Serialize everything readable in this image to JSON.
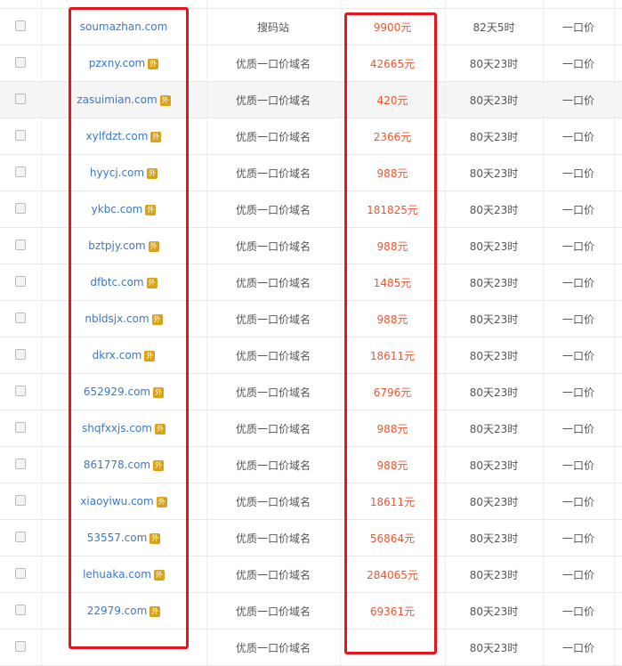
{
  "rows": [
    {
      "domain": "",
      "tag": "",
      "type": "",
      "price": "",
      "time": "",
      "mode": ""
    },
    {
      "domain": "soumazhan.com",
      "tag": "",
      "type": "搜码站",
      "price": "9900元",
      "time": "82天5时",
      "mode": "一口价"
    },
    {
      "domain": "pzxny.com",
      "tag": "外",
      "type": "优质一口价域名",
      "price": "42665元",
      "time": "80天23时",
      "mode": "一口价"
    },
    {
      "domain": "zasuimian.com",
      "tag": "外",
      "type": "优质一口价域名",
      "price": "420元",
      "time": "80天23时",
      "mode": "一口价"
    },
    {
      "domain": "xylfdzt.com",
      "tag": "外",
      "type": "优质一口价域名",
      "price": "2366元",
      "time": "80天23时",
      "mode": "一口价"
    },
    {
      "domain": "hyycj.com",
      "tag": "外",
      "type": "优质一口价域名",
      "price": "988元",
      "time": "80天23时",
      "mode": "一口价"
    },
    {
      "domain": "ykbc.com",
      "tag": "外",
      "type": "优质一口价域名",
      "price": "181825元",
      "time": "80天23时",
      "mode": "一口价"
    },
    {
      "domain": "bztpjy.com",
      "tag": "外",
      "type": "优质一口价域名",
      "price": "988元",
      "time": "80天23时",
      "mode": "一口价"
    },
    {
      "domain": "dfbtc.com",
      "tag": "外",
      "type": "优质一口价域名",
      "price": "1485元",
      "time": "80天23时",
      "mode": "一口价"
    },
    {
      "domain": "nbldsjx.com",
      "tag": "外",
      "type": "优质一口价域名",
      "price": "988元",
      "time": "80天23时",
      "mode": "一口价"
    },
    {
      "domain": "dkrx.com",
      "tag": "外",
      "type": "优质一口价域名",
      "price": "18611元",
      "time": "80天23时",
      "mode": "一口价"
    },
    {
      "domain": "652929.com",
      "tag": "外",
      "type": "优质一口价域名",
      "price": "6796元",
      "time": "80天23时",
      "mode": "一口价"
    },
    {
      "domain": "shqfxxjs.com",
      "tag": "外",
      "type": "优质一口价域名",
      "price": "988元",
      "time": "80天23时",
      "mode": "一口价"
    },
    {
      "domain": "861778.com",
      "tag": "外",
      "type": "优质一口价域名",
      "price": "988元",
      "time": "80天23时",
      "mode": "一口价"
    },
    {
      "domain": "xiaoyiwu.com",
      "tag": "外",
      "type": "优质一口价域名",
      "price": "18611元",
      "time": "80天23时",
      "mode": "一口价"
    },
    {
      "domain": "53557.com",
      "tag": "外",
      "type": "优质一口价域名",
      "price": "56864元",
      "time": "80天23时",
      "mode": "一口价"
    },
    {
      "domain": "lehuaka.com",
      "tag": "外",
      "type": "优质一口价域名",
      "price": "284065元",
      "time": "80天23时",
      "mode": "一口价"
    },
    {
      "domain": "22979.com",
      "tag": "外",
      "type": "优质一口价域名",
      "price": "69361元",
      "time": "80天23时",
      "mode": "一口价"
    },
    {
      "domain": "",
      "tag": "",
      "type": "优质一口价域名",
      "price": "",
      "time": "80天23时",
      "mode": "一口价"
    }
  ],
  "highlight_color": "#e8141b",
  "price_color": "#f0552e",
  "link_color": "#3a78c9"
}
